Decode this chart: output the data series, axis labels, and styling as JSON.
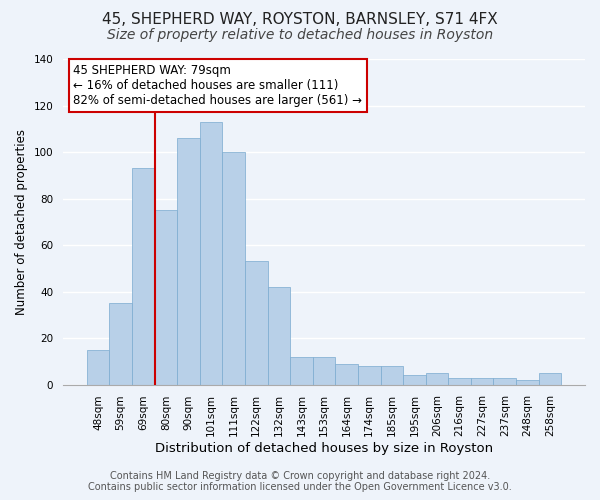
{
  "title": "45, SHEPHERD WAY, ROYSTON, BARNSLEY, S71 4FX",
  "subtitle": "Size of property relative to detached houses in Royston",
  "xlabel": "Distribution of detached houses by size in Royston",
  "ylabel": "Number of detached properties",
  "bar_labels": [
    "48sqm",
    "59sqm",
    "69sqm",
    "80sqm",
    "90sqm",
    "101sqm",
    "111sqm",
    "122sqm",
    "132sqm",
    "143sqm",
    "153sqm",
    "164sqm",
    "174sqm",
    "185sqm",
    "195sqm",
    "206sqm",
    "216sqm",
    "227sqm",
    "237sqm",
    "248sqm",
    "258sqm"
  ],
  "bar_heights": [
    15,
    35,
    93,
    75,
    106,
    113,
    100,
    53,
    42,
    12,
    12,
    9,
    8,
    8,
    4,
    5,
    3,
    3,
    3,
    2,
    5
  ],
  "bar_color": "#b8d0e8",
  "bar_edge_color": "#7aaacf",
  "vline_index": 3,
  "vline_color": "#cc0000",
  "annotation_line1": "45 SHEPHERD WAY: 79sqm",
  "annotation_line2": "← 16% of detached houses are smaller (111)",
  "annotation_line3": "82% of semi-detached houses are larger (561) →",
  "annotation_box_color": "#ffffff",
  "annotation_box_edgecolor": "#cc0000",
  "ylim": [
    0,
    140
  ],
  "footer1": "Contains HM Land Registry data © Crown copyright and database right 2024.",
  "footer2": "Contains public sector information licensed under the Open Government Licence v3.0.",
  "background_color": "#eef3fa",
  "plot_background": "#eef3fa",
  "grid_color": "#ffffff",
  "title_fontsize": 11,
  "subtitle_fontsize": 10,
  "xlabel_fontsize": 9.5,
  "ylabel_fontsize": 8.5,
  "tick_fontsize": 7.5,
  "footer_fontsize": 7.0,
  "annotation_fontsize": 8.5
}
